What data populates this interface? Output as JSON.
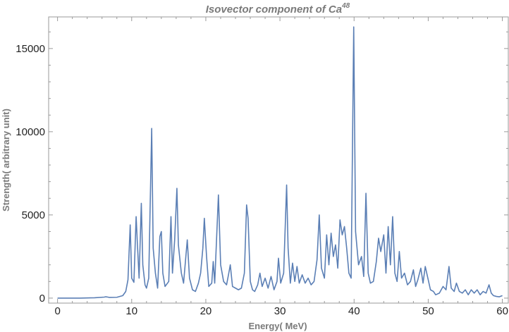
{
  "chart_data": {
    "type": "line",
    "title": "Isovector component of Ca",
    "title_superscript": "48",
    "xlabel": "Energy( MeV)",
    "ylabel": "Strength( arbitrary unit)",
    "xlim": [
      -1.2,
      60.8
    ],
    "ylim": [
      -300,
      16900
    ],
    "x_ticks": [
      0,
      10,
      20,
      30,
      40,
      50,
      60
    ],
    "y_ticks": [
      0,
      5000,
      10000,
      15000
    ],
    "grid": false,
    "line_color": "#5b7fb5",
    "series": [
      {
        "name": "",
        "points": [
          [
            0,
            0
          ],
          [
            3,
            0
          ],
          [
            5,
            20
          ],
          [
            6.3,
            60
          ],
          [
            6.5,
            80
          ],
          [
            6.8,
            60
          ],
          [
            7,
            40
          ],
          [
            8,
            50
          ],
          [
            8.8,
            150
          ],
          [
            9.2,
            400
          ],
          [
            9.5,
            1100
          ],
          [
            9.8,
            4400
          ],
          [
            10.0,
            1200
          ],
          [
            10.3,
            950
          ],
          [
            10.6,
            4900
          ],
          [
            10.8,
            3000
          ],
          [
            11.0,
            1200
          ],
          [
            11.3,
            5700
          ],
          [
            11.5,
            2000
          ],
          [
            11.8,
            800
          ],
          [
            12.0,
            600
          ],
          [
            12.3,
            1200
          ],
          [
            12.7,
            10200
          ],
          [
            12.9,
            3000
          ],
          [
            13.2,
            1500
          ],
          [
            13.5,
            600
          ],
          [
            13.8,
            3700
          ],
          [
            14.0,
            4000
          ],
          [
            14.2,
            1500
          ],
          [
            14.5,
            700
          ],
          [
            15.0,
            1000
          ],
          [
            15.3,
            4900
          ],
          [
            15.5,
            1500
          ],
          [
            15.8,
            3500
          ],
          [
            16.1,
            6600
          ],
          [
            16.3,
            3200
          ],
          [
            16.7,
            1500
          ],
          [
            17.0,
            900
          ],
          [
            17.5,
            3500
          ],
          [
            17.8,
            1200
          ],
          [
            18.2,
            500
          ],
          [
            18.6,
            400
          ],
          [
            19.0,
            900
          ],
          [
            19.3,
            1500
          ],
          [
            19.6,
            3000
          ],
          [
            19.8,
            4800
          ],
          [
            20.1,
            2500
          ],
          [
            20.4,
            700
          ],
          [
            20.8,
            900
          ],
          [
            21.0,
            2200
          ],
          [
            21.2,
            900
          ],
          [
            21.7,
            6200
          ],
          [
            22.0,
            2000
          ],
          [
            22.4,
            1000
          ],
          [
            22.8,
            800
          ],
          [
            23.1,
            1500
          ],
          [
            23.3,
            2000
          ],
          [
            23.6,
            700
          ],
          [
            24.0,
            600
          ],
          [
            24.4,
            500
          ],
          [
            24.8,
            600
          ],
          [
            25.2,
            1500
          ],
          [
            25.5,
            5600
          ],
          [
            25.7,
            4800
          ],
          [
            26.0,
            1000
          ],
          [
            26.3,
            500
          ],
          [
            26.6,
            400
          ],
          [
            27.0,
            800
          ],
          [
            27.3,
            1500
          ],
          [
            27.6,
            700
          ],
          [
            28.0,
            1200
          ],
          [
            28.4,
            600
          ],
          [
            28.8,
            1300
          ],
          [
            29.2,
            500
          ],
          [
            29.6,
            1000
          ],
          [
            29.8,
            2400
          ],
          [
            30.1,
            900
          ],
          [
            30.5,
            1500
          ],
          [
            30.9,
            6800
          ],
          [
            31.1,
            3000
          ],
          [
            31.4,
            900
          ],
          [
            31.7,
            2100
          ],
          [
            32.0,
            1000
          ],
          [
            32.3,
            1900
          ],
          [
            32.6,
            900
          ],
          [
            33.0,
            1400
          ],
          [
            33.4,
            900
          ],
          [
            33.8,
            1200
          ],
          [
            34.2,
            800
          ],
          [
            34.6,
            1000
          ],
          [
            35.0,
            2300
          ],
          [
            35.3,
            5000
          ],
          [
            35.6,
            1800
          ],
          [
            36.0,
            1200
          ],
          [
            36.3,
            3800
          ],
          [
            36.6,
            2000
          ],
          [
            36.9,
            3900
          ],
          [
            37.2,
            2500
          ],
          [
            37.5,
            3200
          ],
          [
            37.8,
            1800
          ],
          [
            38.1,
            4700
          ],
          [
            38.4,
            3800
          ],
          [
            38.7,
            4300
          ],
          [
            39.0,
            3000
          ],
          [
            39.3,
            1500
          ],
          [
            39.6,
            1200
          ],
          [
            39.95,
            16300
          ],
          [
            40.2,
            4000
          ],
          [
            40.6,
            2000
          ],
          [
            41.0,
            2500
          ],
          [
            41.3,
            1300
          ],
          [
            41.6,
            6300
          ],
          [
            41.9,
            1500
          ],
          [
            42.2,
            900
          ],
          [
            42.6,
            1000
          ],
          [
            43.0,
            2200
          ],
          [
            43.3,
            3600
          ],
          [
            43.6,
            2800
          ],
          [
            44.0,
            3800
          ],
          [
            44.3,
            1500
          ],
          [
            44.6,
            4300
          ],
          [
            44.9,
            2000
          ],
          [
            45.2,
            4900
          ],
          [
            45.5,
            1500
          ],
          [
            45.8,
            1000
          ],
          [
            46.1,
            2800
          ],
          [
            46.4,
            1200
          ],
          [
            46.8,
            1500
          ],
          [
            47.2,
            800
          ],
          [
            47.6,
            1000
          ],
          [
            48.0,
            1700
          ],
          [
            48.3,
            700
          ],
          [
            48.6,
            1100
          ],
          [
            49.0,
            1800
          ],
          [
            49.3,
            900
          ],
          [
            49.6,
            1900
          ],
          [
            49.9,
            1300
          ],
          [
            50.3,
            500
          ],
          [
            50.7,
            400
          ],
          [
            51.0,
            200
          ],
          [
            51.5,
            300
          ],
          [
            52.0,
            700
          ],
          [
            52.4,
            500
          ],
          [
            52.8,
            1900
          ],
          [
            53.1,
            600
          ],
          [
            53.5,
            400
          ],
          [
            53.8,
            900
          ],
          [
            54.2,
            400
          ],
          [
            54.6,
            300
          ],
          [
            55.0,
            500
          ],
          [
            55.4,
            200
          ],
          [
            55.8,
            500
          ],
          [
            56.2,
            300
          ],
          [
            56.6,
            500
          ],
          [
            57.0,
            200
          ],
          [
            57.4,
            400
          ],
          [
            57.8,
            300
          ],
          [
            58.2,
            800
          ],
          [
            58.5,
            300
          ],
          [
            58.8,
            150
          ],
          [
            59.2,
            100
          ],
          [
            59.6,
            80
          ],
          [
            60.0,
            150
          ]
        ]
      }
    ]
  }
}
